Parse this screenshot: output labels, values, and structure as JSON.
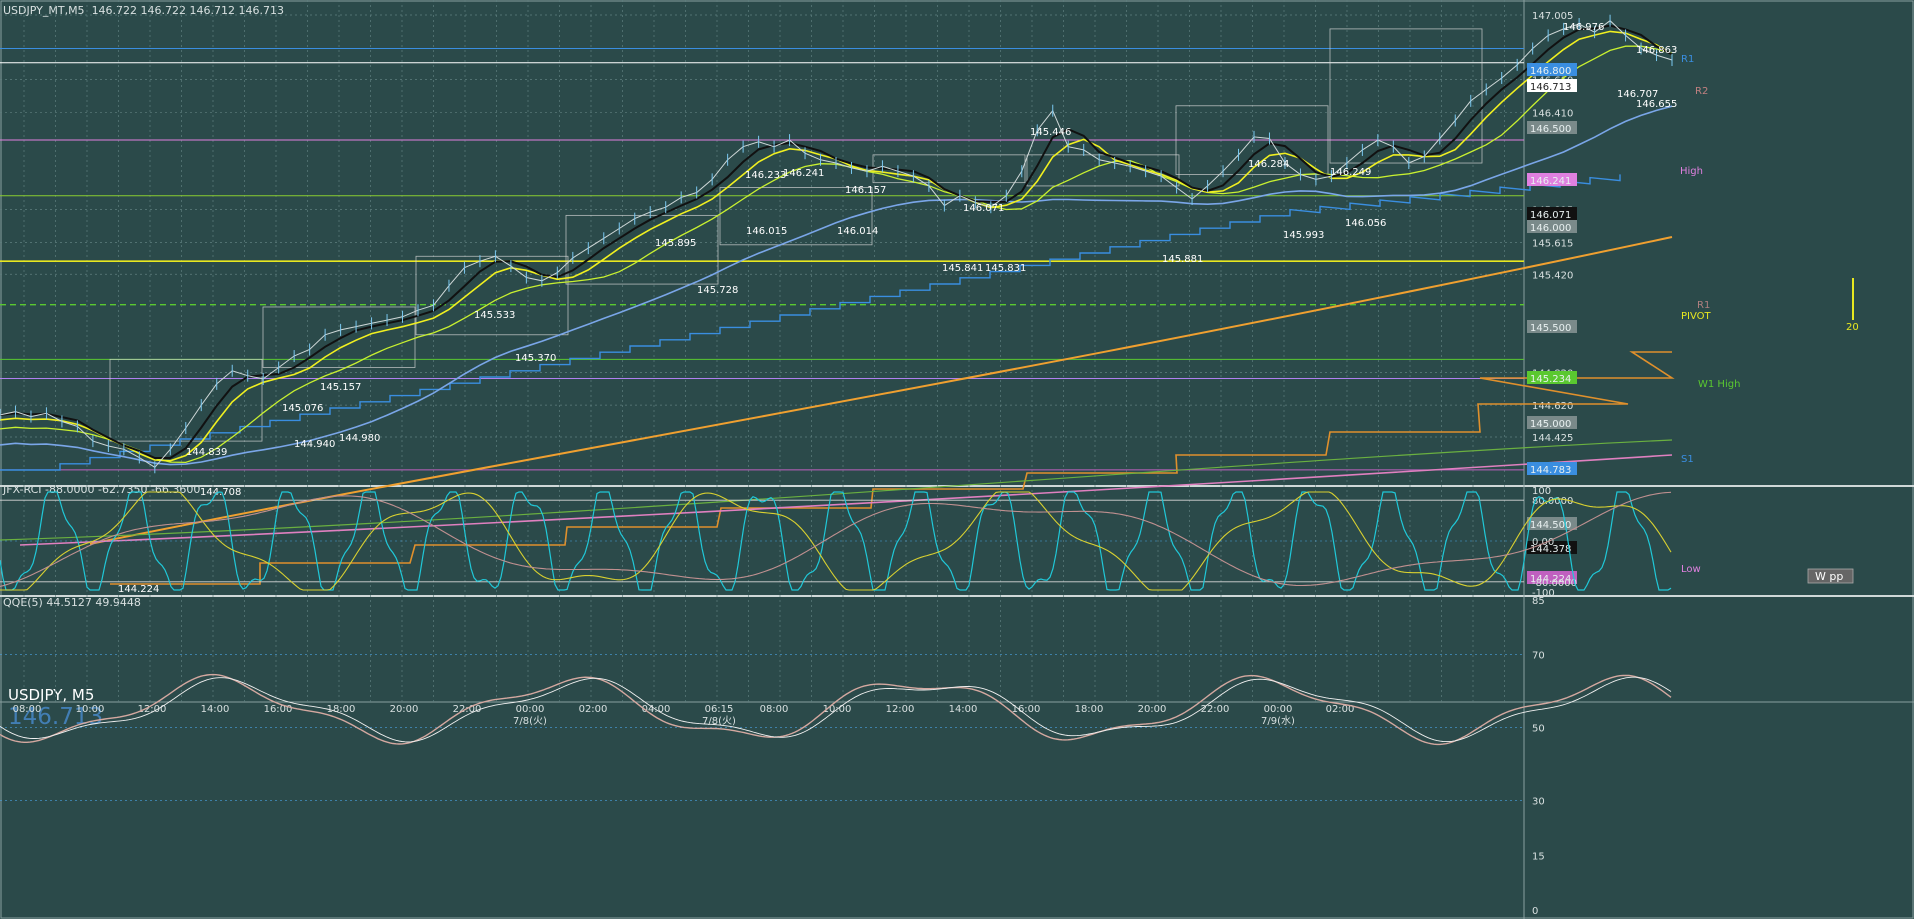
{
  "window": {
    "symbol_header": "USDJPY_MT,M5",
    "ohlc_header": "146.722 146.722 146.712 146.713",
    "overlay_symbol": "USDJPY, M5",
    "overlay_price": "146.713"
  },
  "colors": {
    "background": "#2b4a4a",
    "grid": "#5f7f7f",
    "price_line": "#cfd8d8",
    "ema_fast": "#f0f020",
    "ema_mid": "#c8f030",
    "ema_slow": "#7aa6e8",
    "trend_orange": "#f0a030",
    "trend_pink": "#e080c0",
    "step_blue": "#3a8ee0",
    "step_orange": "#e0902c",
    "rci_fast": "#20c8d8",
    "rci_mid": "#d8d030",
    "rci_slow": "#c09090",
    "qqe_main": "#d4a8a0",
    "qqe_signal": "#f0f0f0"
  },
  "chart_data": [
    {
      "type": "line",
      "panel": "main",
      "x_tick_labels": [
        "08:00",
        "10:00",
        "12:00",
        "14:00",
        "16:00",
        "18:00",
        "20:00",
        "22:00",
        "00:00",
        "02:00",
        "04:00",
        "06:15",
        "08:00",
        "10:00",
        "12:00",
        "14:00",
        "16:00",
        "18:00",
        "20:00",
        "22:00",
        "00:00",
        "02:00"
      ],
      "date_labels": [
        {
          "after_tick": 8,
          "text": "7/8(火)"
        },
        {
          "after_tick": 11,
          "text": "7/8(火)"
        },
        {
          "after_tick": 20,
          "text": "7/9(水)"
        }
      ],
      "y_tick_labels": [
        "147.005",
        "146.610",
        "146.410",
        "145.815",
        "145.615",
        "145.420",
        "144.820",
        "144.620",
        "144.425"
      ],
      "ylim": [
        144.15,
        147.06
      ],
      "series": [
        {
          "name": "USDJPY_MT,M5",
          "x": [
            0,
            2,
            4,
            6,
            8,
            10,
            12,
            14,
            16,
            18,
            20,
            22,
            24,
            26,
            28,
            30,
            32,
            34,
            36,
            38,
            40,
            42,
            44,
            46,
            48,
            50,
            52,
            54,
            56,
            58,
            60,
            62,
            64,
            66,
            68,
            70,
            72,
            74,
            76,
            78,
            80,
            82,
            84,
            86,
            88,
            90,
            92,
            94,
            96,
            98,
            100,
            102,
            104,
            106,
            108,
            110,
            112,
            114,
            116,
            118,
            120,
            122,
            124,
            126,
            128,
            130,
            132,
            134,
            136,
            138,
            140,
            142,
            144,
            146,
            148,
            150,
            152,
            154,
            156,
            158,
            160,
            162,
            164,
            166,
            168,
            170,
            172,
            174,
            176,
            178,
            180,
            182,
            184,
            186,
            188,
            190,
            192,
            194,
            196,
            198,
            200,
            202,
            204,
            206,
            208,
            210,
            212,
            214,
            216
          ],
          "values": [
            144.56,
            144.58,
            144.55,
            144.57,
            144.52,
            144.49,
            144.4,
            144.37,
            144.35,
            144.3,
            144.24,
            144.35,
            144.48,
            144.62,
            144.75,
            144.83,
            144.8,
            144.78,
            144.85,
            144.92,
            144.96,
            145.05,
            145.08,
            145.1,
            145.12,
            145.14,
            145.16,
            145.2,
            145.23,
            145.35,
            145.46,
            145.5,
            145.53,
            145.47,
            145.4,
            145.38,
            145.43,
            145.52,
            145.58,
            145.64,
            145.7,
            145.76,
            145.8,
            145.83,
            145.89,
            145.92,
            146.0,
            146.12,
            146.2,
            146.23,
            146.2,
            146.24,
            146.16,
            146.12,
            146.1,
            146.07,
            146.05,
            146.08,
            146.05,
            146.02,
            145.96,
            145.84,
            145.9,
            145.86,
            145.83,
            145.9,
            146.05,
            146.3,
            146.42,
            146.2,
            146.18,
            146.12,
            146.1,
            146.08,
            146.05,
            146.02,
            145.95,
            145.88,
            145.96,
            146.05,
            146.15,
            146.26,
            146.25,
            146.1,
            146.03,
            146.0,
            146.02,
            146.1,
            146.18,
            146.24,
            146.2,
            146.1,
            146.14,
            146.25,
            146.36,
            146.48,
            146.55,
            146.62,
            146.7,
            146.8,
            146.88,
            146.92,
            146.95,
            146.9,
            146.97,
            146.88,
            146.8,
            146.76,
            146.73
          ]
        }
      ],
      "annotations": [
        "146.976",
        "146.863",
        "146.707",
        "146.655",
        "145.446",
        "146.284",
        "146.249",
        "146.233",
        "146.241",
        "146.157",
        "146.071",
        "146.015",
        "146.014",
        "145.993",
        "146.056",
        "145.895",
        "145.728",
        "145.841",
        "145.831",
        "145.881",
        "145.533",
        "145.370",
        "145.157",
        "145.076",
        "144.980",
        "144.940",
        "144.839",
        "144.708",
        "144.224"
      ],
      "level_labels": [
        "R1",
        "R2",
        "High",
        "R1",
        "PIVOT",
        "W1 High",
        "S1",
        "Low"
      ],
      "price_tags": [
        "146.800",
        "146.713",
        "146.500",
        "146.241",
        "146.071",
        "146.000",
        "145.500",
        "145.234",
        "145.000",
        "144.783",
        "144.500",
        "144.378",
        "144.224"
      ],
      "wpp_label": "W pp",
      "wpp_count": "20"
    },
    {
      "type": "line",
      "panel": "rci",
      "title": "JFX-RCI -88.0000 -62.7350 -66.3600",
      "y_tick_labels": [
        "100",
        "80.0000",
        "0.00",
        "-80.0000",
        "-100"
      ],
      "ylim": [
        -100,
        100
      ]
    },
    {
      "type": "line",
      "panel": "qqe",
      "title": "QQE(5) 44.5127 49.9448",
      "y_tick_labels": [
        "85",
        "70",
        "50",
        "30",
        "15",
        "0"
      ],
      "ylim": [
        0,
        85
      ]
    }
  ]
}
